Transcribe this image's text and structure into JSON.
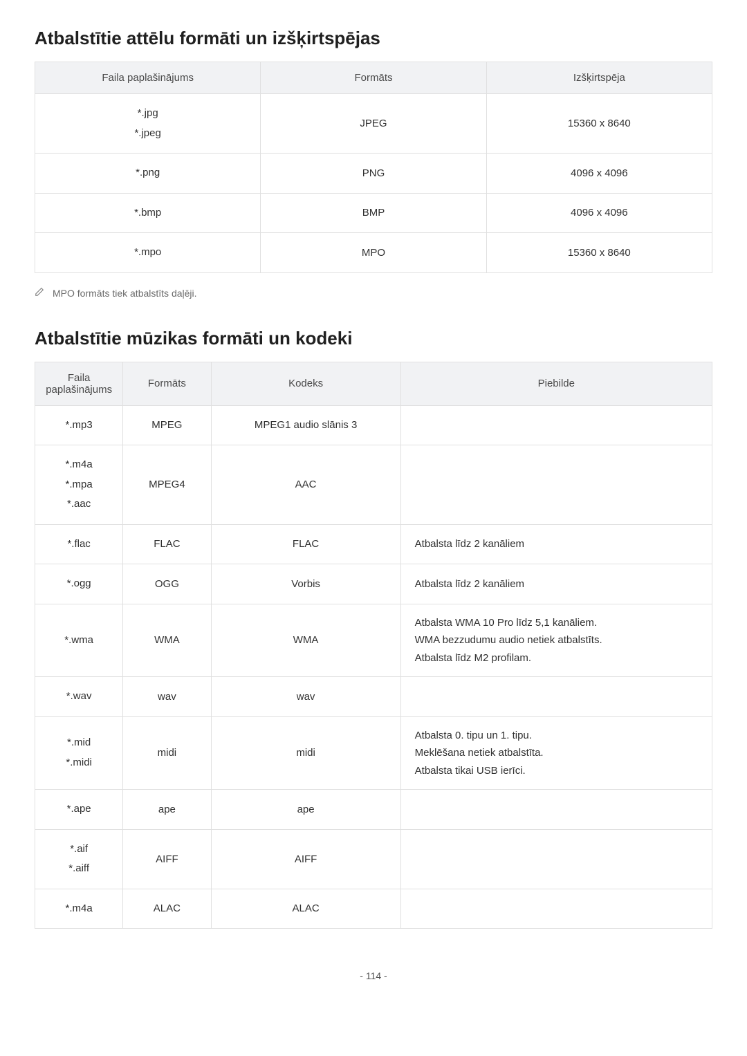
{
  "heading1": "Atbalstītie attēlu formāti un izšķirtspējas",
  "table1": {
    "headers": [
      "Faila paplašinājums",
      "Formāts",
      "Izšķirtspēja"
    ],
    "rows": [
      {
        "ext": "*.jpg\n*.jpeg",
        "fmt": "JPEG",
        "res": "15360 x 8640"
      },
      {
        "ext": "*.png",
        "fmt": "PNG",
        "res": "4096 x 4096"
      },
      {
        "ext": "*.bmp",
        "fmt": "BMP",
        "res": "4096 x 4096"
      },
      {
        "ext": "*.mpo",
        "fmt": "MPO",
        "res": "15360 x 8640"
      }
    ]
  },
  "note1": "MPO formāts tiek atbalstīts daļēji.",
  "heading2": "Atbalstītie mūzikas formāti un kodeki",
  "table2": {
    "headers": [
      "Faila paplašinājums",
      "Formāts",
      "Kodeks",
      "Piebilde"
    ],
    "rows": [
      {
        "ext": "*.mp3",
        "fmt": "MPEG",
        "codec": "MPEG1 audio slānis 3",
        "note": ""
      },
      {
        "ext": "*.m4a\n*.mpa\n*.aac",
        "fmt": "MPEG4",
        "codec": "AAC",
        "note": ""
      },
      {
        "ext": "*.flac",
        "fmt": "FLAC",
        "codec": "FLAC",
        "note": "Atbalsta līdz 2 kanāliem"
      },
      {
        "ext": "*.ogg",
        "fmt": "OGG",
        "codec": "Vorbis",
        "note": "Atbalsta līdz 2 kanāliem"
      },
      {
        "ext": "*.wma",
        "fmt": "WMA",
        "codec": "WMA",
        "note": "Atbalsta WMA 10 Pro līdz 5,1 kanāliem.\nWMA bezzudumu audio netiek atbalstīts.\nAtbalsta līdz M2 profilam."
      },
      {
        "ext": "*.wav",
        "fmt": "wav",
        "codec": "wav",
        "note": ""
      },
      {
        "ext": "*.mid\n*.midi",
        "fmt": "midi",
        "codec": "midi",
        "note": "Atbalsta 0. tipu un 1. tipu.\nMeklēšana netiek atbalstīta.\nAtbalsta tikai USB ierīci."
      },
      {
        "ext": "*.ape",
        "fmt": "ape",
        "codec": "ape",
        "note": ""
      },
      {
        "ext": "*.aif\n*.aiff",
        "fmt": "AIFF",
        "codec": "AIFF",
        "note": ""
      },
      {
        "ext": "*.m4a",
        "fmt": "ALAC",
        "codec": "ALAC",
        "note": ""
      }
    ]
  },
  "pagenum": "- 114 -"
}
